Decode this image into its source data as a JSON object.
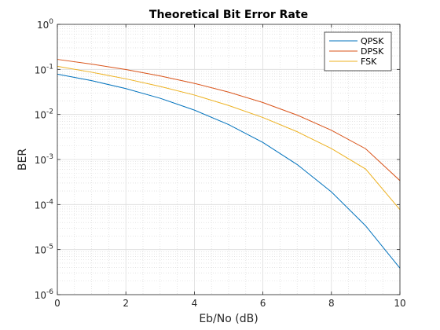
{
  "chart_data": {
    "type": "line",
    "title": "Theoretical Bit Error Rate",
    "xlabel": "Eb/No (dB)",
    "ylabel": "BER",
    "x": [
      0,
      1,
      2,
      3,
      4,
      5,
      6,
      7,
      8,
      9,
      10
    ],
    "xlim": [
      0,
      10
    ],
    "xticks": [
      0,
      2,
      4,
      6,
      8,
      10
    ],
    "yscale": "log",
    "ylim": [
      1e-06,
      1
    ],
    "yticks": [
      {
        "value": 1e-06,
        "base": "10",
        "exp": "-6"
      },
      {
        "value": 1e-05,
        "base": "10",
        "exp": "-5"
      },
      {
        "value": 0.0001,
        "base": "10",
        "exp": "-4"
      },
      {
        "value": 0.001,
        "base": "10",
        "exp": "-3"
      },
      {
        "value": 0.01,
        "base": "10",
        "exp": "-2"
      },
      {
        "value": 0.1,
        "base": "10",
        "exp": "-1"
      },
      {
        "value": 1,
        "base": "10",
        "exp": "0"
      }
    ],
    "grid": true,
    "minor_grid": true,
    "legend_position": "top-right",
    "series": [
      {
        "name": "QPSK",
        "color": "#0072BD",
        "values": [
          0.0786,
          0.0563,
          0.0375,
          0.0229,
          0.0125,
          0.00595,
          0.00239,
          0.000773,
          0.000191,
          3.36e-05,
          3.87e-06
        ]
      },
      {
        "name": "DPSK",
        "color": "#D95319",
        "values": [
          0.167,
          0.131,
          0.0992,
          0.0717,
          0.049,
          0.0313,
          0.0184,
          0.00968,
          0.00446,
          0.00173,
          0.00034
        ]
      },
      {
        "name": "FSK",
        "color": "#EDB120",
        "values": [
          0.117,
          0.0865,
          0.0618,
          0.0419,
          0.027,
          0.0158,
          0.00855,
          0.00414,
          0.00175,
          0.000614,
          7.72e-05
        ]
      }
    ]
  }
}
